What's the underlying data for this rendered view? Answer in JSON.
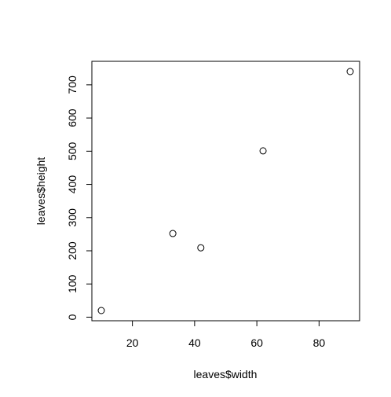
{
  "chart_data": {
    "type": "scatter",
    "title": "",
    "xlabel": "leaves$width",
    "ylabel": "leaves$height",
    "xlim": [
      10,
      90
    ],
    "ylim": [
      20,
      740
    ],
    "x_ticks": [
      20,
      40,
      60,
      80
    ],
    "y_ticks": [
      0,
      100,
      200,
      300,
      400,
      500,
      600,
      700
    ],
    "grid": false,
    "legend": "none",
    "marker": "open-circle",
    "colors": {
      "axis": "#000000",
      "points": "#000000",
      "background": "#ffffff"
    },
    "points": [
      {
        "x": 10,
        "y": 20
      },
      {
        "x": 33,
        "y": 252
      },
      {
        "x": 42,
        "y": 209
      },
      {
        "x": 62,
        "y": 501
      },
      {
        "x": 90,
        "y": 740
      }
    ]
  }
}
